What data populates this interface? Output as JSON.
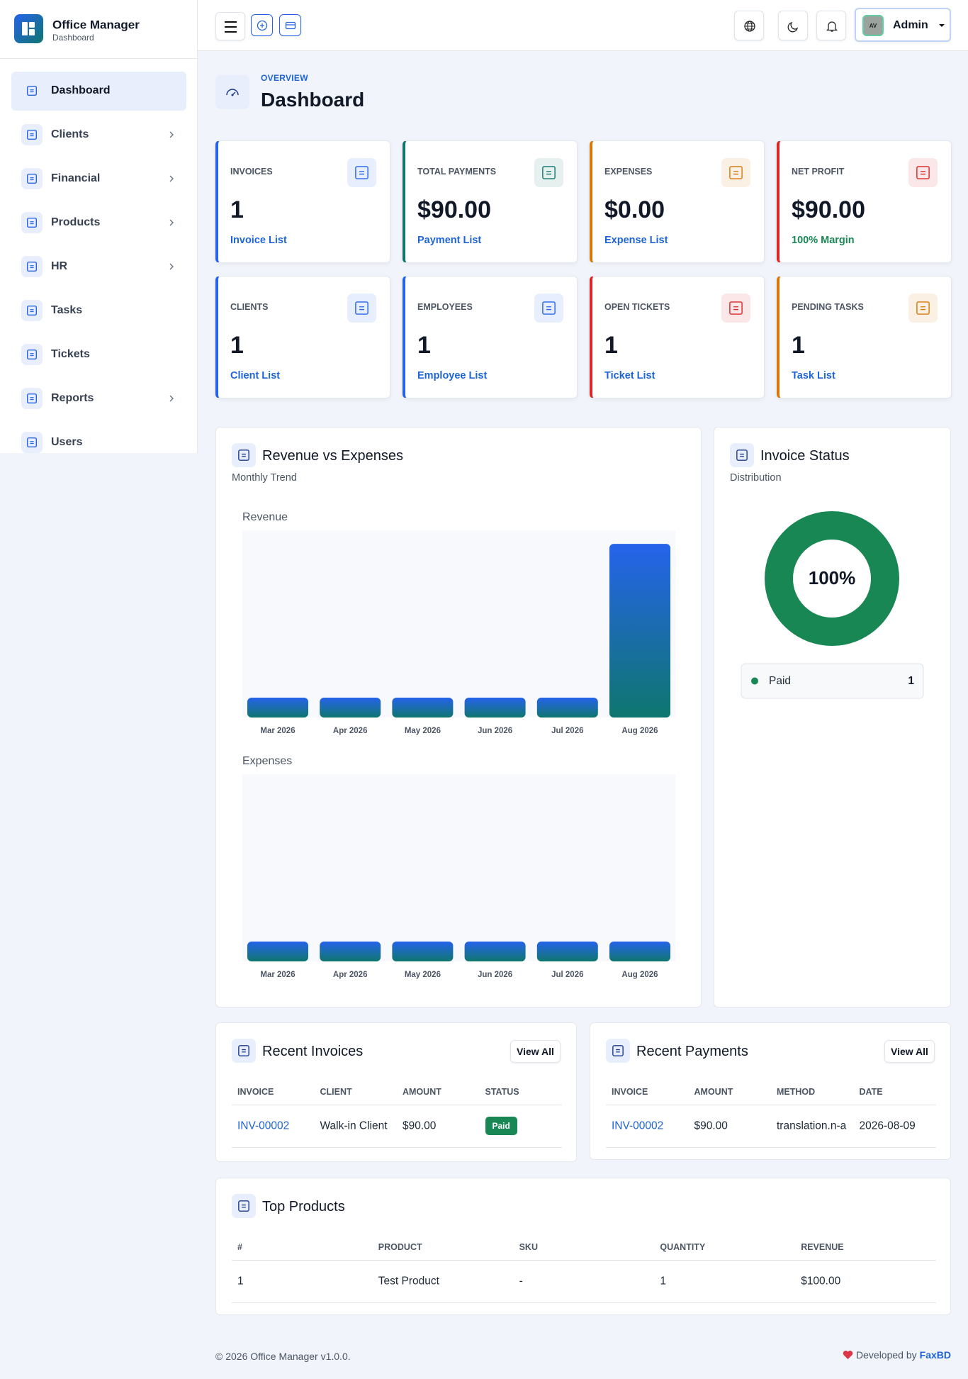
{
  "brand": {
    "name": "Office Manager",
    "subtitle": "Dashboard"
  },
  "nav": [
    {
      "label": "Dashboard",
      "active": true,
      "submenu": false
    },
    {
      "label": "Clients",
      "active": false,
      "submenu": true
    },
    {
      "label": "Financial",
      "active": false,
      "submenu": true
    },
    {
      "label": "Products",
      "active": false,
      "submenu": true
    },
    {
      "label": "HR",
      "active": false,
      "submenu": true
    },
    {
      "label": "Tasks",
      "active": false,
      "submenu": false
    },
    {
      "label": "Tickets",
      "active": false,
      "submenu": false
    },
    {
      "label": "Reports",
      "active": false,
      "submenu": true
    },
    {
      "label": "Users",
      "active": false,
      "submenu": false
    }
  ],
  "topbar": {
    "user": "Admin",
    "avatar": "AV"
  },
  "page": {
    "eyebrow": "OVERVIEW",
    "title": "Dashboard"
  },
  "stats": [
    {
      "label": "INVOICES",
      "value": "1",
      "link": "Invoice List",
      "accent": "#2563eb",
      "link_color": "#1d64d8"
    },
    {
      "label": "TOTAL PAYMENTS",
      "value": "$90.00",
      "link": "Payment List",
      "accent": "#0f766e",
      "link_color": "#1d64d8"
    },
    {
      "label": "EXPENSES",
      "value": "$0.00",
      "link": "Expense List",
      "accent": "#d97706",
      "link_color": "#1d64d8"
    },
    {
      "label": "NET PROFIT",
      "value": "$90.00",
      "link": "100% Margin",
      "accent": "#dc2626",
      "link_color": "#198754"
    },
    {
      "label": "CLIENTS",
      "value": "1",
      "link": "Client List",
      "accent": "#2563eb",
      "link_color": "#1d64d8"
    },
    {
      "label": "EMPLOYEES",
      "value": "1",
      "link": "Employee List",
      "accent": "#2563eb",
      "link_color": "#1d64d8"
    },
    {
      "label": "OPEN TICKETS",
      "value": "1",
      "link": "Ticket List",
      "accent": "#dc2626",
      "link_color": "#1d64d8"
    },
    {
      "label": "PENDING TASKS",
      "value": "1",
      "link": "Task List",
      "accent": "#d97706",
      "link_color": "#1d64d8"
    }
  ],
  "revenue_card": {
    "title": "Revenue vs Expenses",
    "subtitle": "Monthly Trend"
  },
  "status_card": {
    "title": "Invoice Status",
    "subtitle": "Distribution"
  },
  "chart_data": [
    {
      "type": "bar",
      "title": "Revenue",
      "categories": [
        "Mar 2026",
        "Apr 2026",
        "May 2026",
        "Jun 2026",
        "Jul 2026",
        "Aug 2026"
      ],
      "values": [
        0,
        0,
        0,
        0,
        0,
        90
      ],
      "color": "#2563eb",
      "ylim": [
        0,
        100
      ]
    },
    {
      "type": "bar",
      "title": "Expenses",
      "categories": [
        "Mar 2026",
        "Apr 2026",
        "May 2026",
        "Jun 2026",
        "Jul 2026",
        "Aug 2026"
      ],
      "values": [
        0,
        0,
        0,
        0,
        0,
        0
      ],
      "color": "#2563eb",
      "ylim": [
        0,
        100
      ]
    },
    {
      "type": "donut",
      "categories": [
        "Paid"
      ],
      "values": [
        1
      ],
      "colors": [
        "#198754"
      ],
      "center_label": "100%"
    }
  ],
  "recent_invoices": {
    "title": "Recent Invoices",
    "action": "View All",
    "columns": [
      "INVOICE",
      "CLIENT",
      "AMOUNT",
      "STATUS"
    ],
    "rows": [
      [
        "INV-00002",
        "Walk-in Client",
        "$90.00",
        "Paid"
      ]
    ],
    "link_column": 0,
    "badge_column": 3
  },
  "recent_payments": {
    "title": "Recent Payments",
    "action": "View All",
    "columns": [
      "INVOICE",
      "AMOUNT",
      "METHOD",
      "DATE"
    ],
    "rows": [
      [
        "INV-00002",
        "$90.00",
        "translation.n-a",
        "2026-08-09"
      ]
    ],
    "link_column": 0
  },
  "top_products": {
    "title": "Top Products",
    "columns": [
      "#",
      "PRODUCT",
      "SKU",
      "QUANTITY",
      "REVENUE"
    ],
    "rows": [
      [
        "1",
        "Test Product",
        "-",
        "1",
        "$100.00"
      ]
    ]
  },
  "footer": {
    "copyright": "© 2026 Office Manager v1.0.0.",
    "credit": "Developed by",
    "author": "FaxBD"
  }
}
